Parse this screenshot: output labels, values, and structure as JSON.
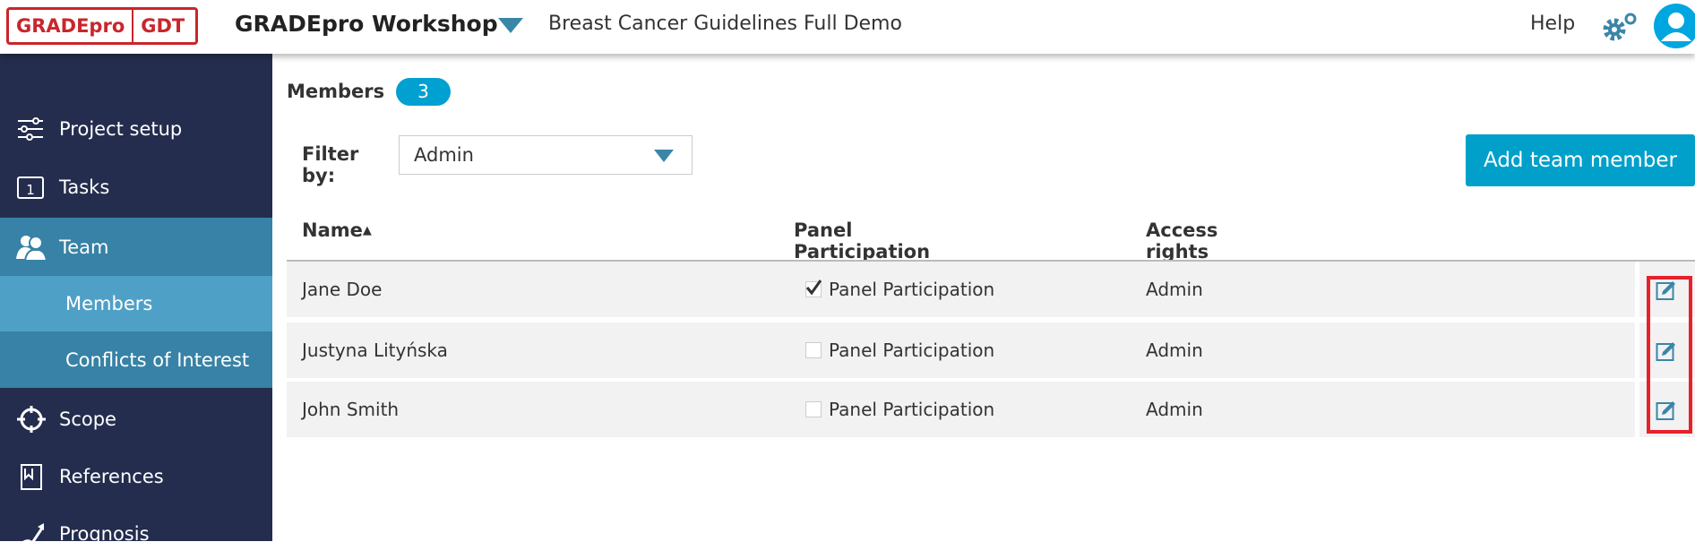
{
  "header": {
    "logo_left": "GRADEpro",
    "logo_right": "GDT",
    "app_title": "GRADEpro Workshop",
    "project_name": "Breast Cancer Guidelines Full Demo",
    "help": "Help",
    "icons": [
      "caret-down-icon",
      "gear-icon",
      "user-avatar-icon"
    ]
  },
  "sidebar": {
    "items": [
      {
        "label": "Project setup",
        "icon": "sliders-icon"
      },
      {
        "label": "Tasks",
        "icon": "calendar-icon"
      },
      {
        "label": "Team",
        "icon": "users-icon",
        "active": true
      },
      {
        "label": "Members",
        "sub": true,
        "selected": true
      },
      {
        "label": "Conflicts of Interest",
        "sub": true
      },
      {
        "label": "Scope",
        "icon": "crosshair-icon"
      },
      {
        "label": "References",
        "icon": "bookmark-icon"
      },
      {
        "label": "Prognosis",
        "icon": "trend-icon"
      }
    ]
  },
  "main": {
    "title": "Members",
    "count": "3",
    "filter": {
      "label": "Filter by:",
      "value": "Admin"
    },
    "add_button": "Add team member",
    "columns": {
      "name": "Name",
      "panel": "Panel Participation",
      "access": "Access rights"
    },
    "rows": [
      {
        "name": "Jane Doe",
        "panel_label": "Panel Participation",
        "panel_checked": true,
        "access": "Admin"
      },
      {
        "name": "Justyna Lityńska",
        "panel_label": "Panel Participation",
        "panel_checked": false,
        "access": "Admin"
      },
      {
        "name": "John Smith",
        "panel_label": "Panel Participation",
        "panel_checked": false,
        "access": "Admin"
      }
    ]
  },
  "colors": {
    "sidebar": "#242d4e",
    "active": "#3782a6",
    "selected": "#4fa0c7",
    "accent": "#00a0cb",
    "highlight": "#e8202a"
  }
}
